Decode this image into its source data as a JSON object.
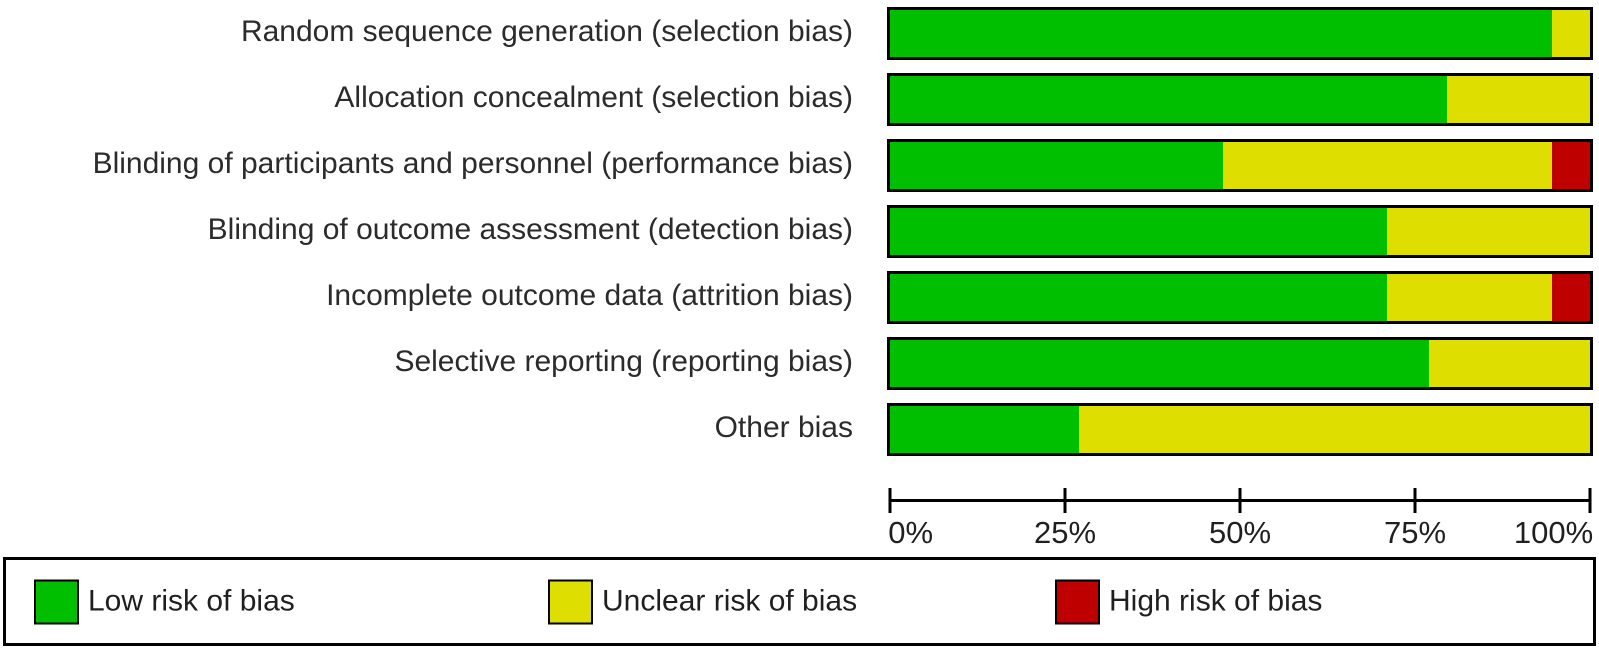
{
  "figure": {
    "kind": "risk-of-bias-graph"
  },
  "chart_data": {
    "type": "bar",
    "orientation": "horizontal",
    "stacked": true,
    "units": "percent of studies",
    "categories": [
      "Random sequence generation (selection bias)",
      "Allocation concealment (selection bias)",
      "Blinding of participants and personnel (performance bias)",
      "Blinding of outcome assessment (detection bias)",
      "Incomplete outcome data (attrition bias)",
      "Selective reporting (reporting bias)",
      "Other bias"
    ],
    "series": [
      {
        "name": "Low risk of bias",
        "color": "#00BE00",
        "values": [
          94.5,
          79.5,
          47.5,
          71,
          71,
          77,
          27
        ]
      },
      {
        "name": "Unclear risk of bias",
        "color": "#DEDE00",
        "values": [
          5.5,
          20.5,
          47,
          29,
          23.5,
          23,
          73
        ]
      },
      {
        "name": "High risk of bias",
        "color": "#BF0000",
        "values": [
          0,
          0,
          5.5,
          0,
          5.5,
          0,
          0
        ]
      }
    ],
    "xlabel": "",
    "ylabel": "",
    "xlim": [
      0,
      100
    ],
    "x_ticks": [
      "0%",
      "25%",
      "50%",
      "75%",
      "100%"
    ],
    "grid": false,
    "legend_position": "bottom"
  }
}
